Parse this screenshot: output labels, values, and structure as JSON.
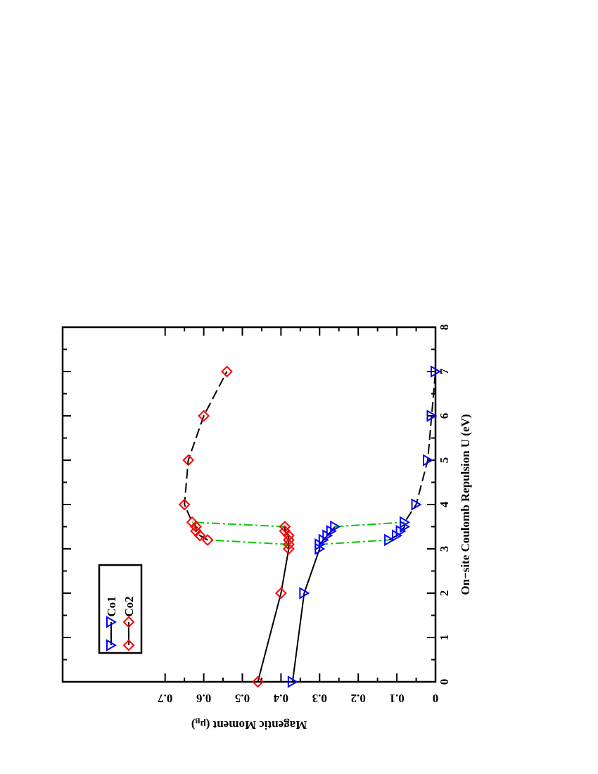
{
  "chart_data": {
    "type": "line",
    "title": "",
    "xlabel": "On−site Coulomb Repulsion U (eV)",
    "ylabel_text": "Magentic Moment (",
    "ylabel_mu": "μ",
    "ylabel_sub": "B",
    "ylabel_close": ")",
    "xlim": [
      0,
      8
    ],
    "ylim": [
      0,
      0.7
    ],
    "orientation": "rotated-90-clockwise",
    "x_ticks": [
      "0",
      "1",
      "2",
      "3",
      "4",
      "5",
      "6",
      "7",
      "8"
    ],
    "y_ticks": [
      "0",
      "0.1",
      "0.2",
      "0.3",
      "0.4",
      "0.5",
      "0.6",
      "0.7"
    ],
    "legend_position": "top-left",
    "legend_entries": [
      "Co1",
      "Co2"
    ],
    "series": [
      {
        "name": "Co1",
        "color": "#0000ff",
        "marker": "triangle",
        "low_branch": {
          "x": [
            0,
            2,
            3.0,
            3.1,
            3.2,
            3.3,
            3.4,
            3.5
          ],
          "y": [
            0.37,
            0.34,
            0.3,
            0.3,
            0.29,
            0.28,
            0.27,
            0.26
          ]
        },
        "high_branch": {
          "x": [
            3.2,
            3.3,
            3.4,
            3.5,
            3.6,
            4.0,
            5.0,
            6.0,
            7.0
          ],
          "y": [
            0.12,
            0.1,
            0.09,
            0.08,
            0.08,
            0.05,
            0.02,
            0.01,
            0.0
          ]
        }
      },
      {
        "name": "Co2",
        "color": "#ff0000",
        "marker": "diamond",
        "low_branch": {
          "x": [
            0,
            2,
            3.0,
            3.1,
            3.2,
            3.3,
            3.4,
            3.5
          ],
          "y": [
            0.46,
            0.4,
            0.38,
            0.38,
            0.38,
            0.38,
            0.39,
            0.39
          ]
        },
        "high_branch": {
          "x": [
            3.2,
            3.3,
            3.4,
            3.5,
            3.6,
            4.0,
            5.0,
            6.0,
            7.0
          ],
          "y": [
            0.59,
            0.61,
            0.62,
            0.62,
            0.63,
            0.65,
            0.64,
            0.6,
            0.54
          ]
        }
      }
    ],
    "transitions": [
      {
        "series": "Co1",
        "from": [
          3.1,
          0.3
        ],
        "to": [
          3.2,
          0.12
        ]
      },
      {
        "series": "Co1",
        "from": [
          3.5,
          0.26
        ],
        "to": [
          3.6,
          0.08
        ]
      },
      {
        "series": "Co2",
        "from": [
          3.1,
          0.38
        ],
        "to": [
          3.2,
          0.59
        ]
      },
      {
        "series": "Co2",
        "from": [
          3.5,
          0.39
        ],
        "to": [
          3.6,
          0.63
        ]
      }
    ],
    "transition_color": "#00cc00"
  }
}
